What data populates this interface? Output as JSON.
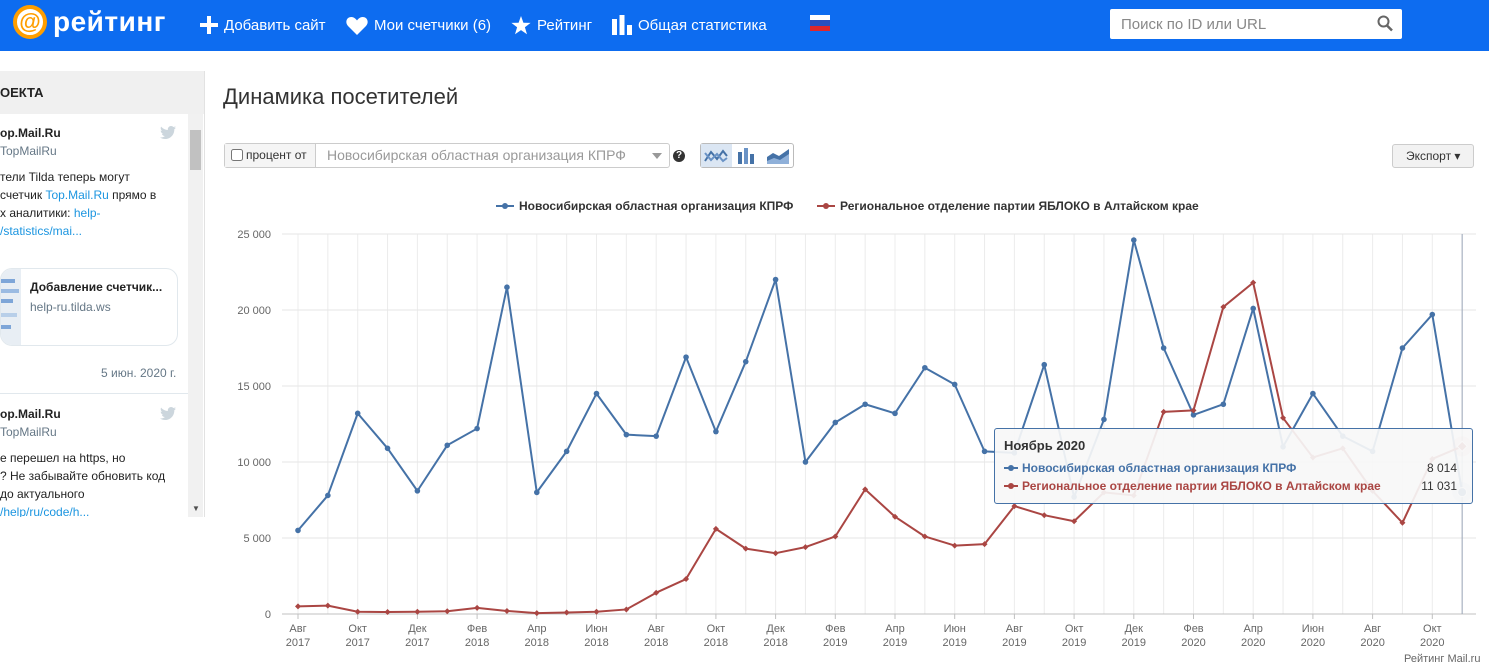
{
  "header": {
    "logo_text": "рейтинг",
    "nav": [
      {
        "label": "Добавить сайт",
        "icon": "plus-icon"
      },
      {
        "label": "Мои счетчики (6)",
        "icon": "heart-icon"
      },
      {
        "label": "Рейтинг",
        "icon": "star-icon"
      },
      {
        "label": "Общая статистика",
        "icon": "bar-chart-icon"
      }
    ],
    "language_flag": "russia-flag",
    "search_placeholder": "Поиск по ID или URL",
    "colors": {
      "bar": "#0d6cf0",
      "logo_accent": "#ff9e00"
    }
  },
  "sidebar": {
    "title": "ОЕКТА",
    "tweet1": {
      "name": "op.Mail.Ru",
      "handle": "TopMailRu",
      "text_a": "тели Tilda теперь могут",
      "text_b": "счетчик ",
      "link_a": "Top.Mail.Ru",
      "text_c": " прямо в",
      "text_d": "х аналитики: ",
      "link_b": "help-",
      "link_c": "/statistics/mai..."
    },
    "card": {
      "title": "Добавление счетчик...",
      "url": "help-ru.tilda.ws"
    },
    "date": "5 июн. 2020 г.",
    "tweet2": {
      "name": "op.Mail.Ru",
      "handle": "TopMailRu",
      "line1": "е перешел на https, но",
      "line2": "? Не забывайте обновить код",
      "line3": "до актуального",
      "link": "/help/ru/code/h..."
    }
  },
  "main": {
    "title": "Динамика посетителей",
    "percent_label": "процент от",
    "percent_checked": false,
    "compare_select": "Новосибирская областная организация КПРФ",
    "help_label": "?",
    "chart_type_icons": [
      "line-chart-icon",
      "column-chart-icon",
      "area-chart-icon"
    ],
    "active_chart_type": 0,
    "export_label": "Экспорт ▾"
  },
  "chart_data": {
    "type": "line",
    "title": "",
    "xlabel": "",
    "ylabel": "",
    "ylim": [
      0,
      25000
    ],
    "yticks": [
      0,
      5000,
      10000,
      15000,
      20000,
      25000
    ],
    "ytick_labels": [
      "0",
      "5 000",
      "10 000",
      "15 000",
      "20 000",
      "25 000"
    ],
    "x": [
      "Авг 2017",
      "Сен 2017",
      "Окт 2017",
      "Ноя 2017",
      "Дек 2017",
      "Янв 2018",
      "Фев 2018",
      "Мар 2018",
      "Апр 2018",
      "Май 2018",
      "Июн 2018",
      "Июл 2018",
      "Авг 2018",
      "Сен 2018",
      "Окт 2018",
      "Ноя 2018",
      "Дек 2018",
      "Янв 2019",
      "Фев 2019",
      "Мар 2019",
      "Апр 2019",
      "Май 2019",
      "Июн 2019",
      "Июл 2019",
      "Авг 2019",
      "Сен 2019",
      "Окт 2019",
      "Ноя 2019",
      "Дек 2019",
      "Янв 2020",
      "Фев 2020",
      "Мар 2020",
      "Апр 2020",
      "Май 2020",
      "Июн 2020",
      "Июл 2020",
      "Авг 2020",
      "Сен 2020",
      "Окт 2020",
      "Ноя 2020"
    ],
    "xtick_labels": [
      {
        "index": 0,
        "m": "Авг",
        "y": "2017"
      },
      {
        "index": 2,
        "m": "Окт",
        "y": "2017"
      },
      {
        "index": 4,
        "m": "Дек",
        "y": "2017"
      },
      {
        "index": 6,
        "m": "Фев",
        "y": "2018"
      },
      {
        "index": 8,
        "m": "Апр",
        "y": "2018"
      },
      {
        "index": 10,
        "m": "Июн",
        "y": "2018"
      },
      {
        "index": 12,
        "m": "Авг",
        "y": "2018"
      },
      {
        "index": 14,
        "m": "Окт",
        "y": "2018"
      },
      {
        "index": 16,
        "m": "Дек",
        "y": "2018"
      },
      {
        "index": 18,
        "m": "Фев",
        "y": "2019"
      },
      {
        "index": 20,
        "m": "Апр",
        "y": "2019"
      },
      {
        "index": 22,
        "m": "Июн",
        "y": "2019"
      },
      {
        "index": 24,
        "m": "Авг",
        "y": "2019"
      },
      {
        "index": 26,
        "m": "Окт",
        "y": "2019"
      },
      {
        "index": 28,
        "m": "Дек",
        "y": "2019"
      },
      {
        "index": 30,
        "m": "Фев",
        "y": "2020"
      },
      {
        "index": 32,
        "m": "Апр",
        "y": "2020"
      },
      {
        "index": 34,
        "m": "Июн",
        "y": "2020"
      },
      {
        "index": 36,
        "m": "Авг",
        "y": "2020"
      },
      {
        "index": 38,
        "m": "Окт",
        "y": "2020"
      }
    ],
    "series": [
      {
        "name": "Новосибирская областная организация КПРФ",
        "color": "#4572a7",
        "values": [
          5500,
          7800,
          13200,
          10900,
          8100,
          11100,
          12200,
          21500,
          8000,
          10700,
          14500,
          11800,
          11700,
          16900,
          12000,
          16600,
          22000,
          10000,
          12600,
          13800,
          13200,
          16200,
          15100,
          10700,
          10600,
          16400,
          7700,
          12800,
          24600,
          17500,
          13100,
          13800,
          20100,
          11000,
          14500,
          11700,
          10700,
          17500,
          19700,
          8014
        ]
      },
      {
        "name": "Региональное отделение партии ЯБЛОКО в Алтайском крае",
        "color": "#aa4643",
        "values": [
          500,
          550,
          150,
          130,
          150,
          180,
          400,
          200,
          60,
          100,
          150,
          300,
          1400,
          2300,
          5600,
          4300,
          4000,
          4400,
          5100,
          8200,
          6400,
          5100,
          4500,
          4600,
          7100,
          6500,
          6100,
          8000,
          7800,
          13300,
          13400,
          20200,
          21800,
          12900,
          10300,
          10900,
          8100,
          6000,
          10200,
          11031
        ]
      }
    ],
    "grid": true,
    "legend_position": "top-center",
    "tooltip": {
      "title": "Ноябрь 2020",
      "index": 39,
      "values": [
        "8 014",
        "11 031"
      ]
    }
  },
  "footer_brand": "Рейтинг Mail.ru"
}
